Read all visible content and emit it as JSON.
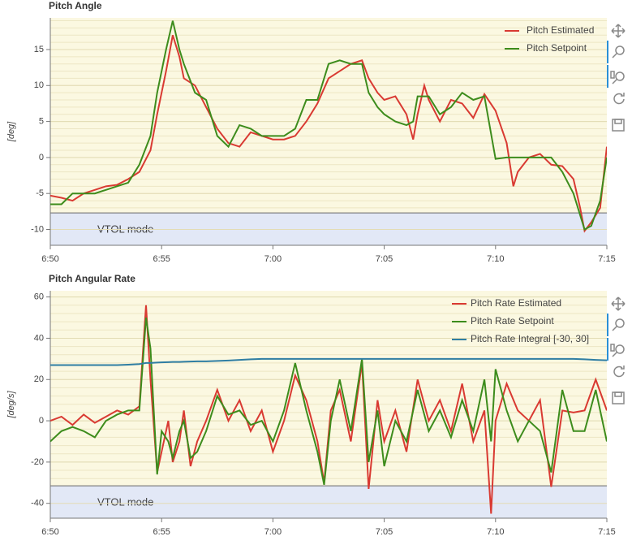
{
  "chart_data": [
    {
      "type": "line",
      "title": "Pitch Angle",
      "y_label": "[deg]",
      "xlim": [
        410,
        435
      ],
      "ylim": [
        -12.2,
        19.4
      ],
      "xticks": [
        {
          "value": 410,
          "label": "6:50"
        },
        {
          "value": 415,
          "label": "6:55"
        },
        {
          "value": 420,
          "label": "7:00"
        },
        {
          "value": 425,
          "label": "7:05"
        },
        {
          "value": 430,
          "label": "7:10"
        },
        {
          "value": 435,
          "label": "7:15"
        }
      ],
      "yticks": [
        -10,
        -5,
        0,
        5,
        10,
        15
      ],
      "grid": true,
      "legend": "top-right",
      "band": {
        "label": "VTOL mode",
        "top": -7.7
      },
      "x": [
        410,
        410.5,
        411,
        411.5,
        412,
        412.5,
        413,
        413.5,
        414,
        414.5,
        414.8,
        415.2,
        415.5,
        415.8,
        416,
        416.5,
        417,
        417.5,
        418,
        418.5,
        419,
        419.5,
        420,
        420.5,
        421,
        421.5,
        422,
        422.5,
        423,
        423.5,
        424,
        424.3,
        424.7,
        425,
        425.5,
        426,
        426.3,
        426.5,
        426.8,
        427,
        427.5,
        428,
        428.5,
        429,
        429.5,
        430,
        430.5,
        430.8,
        431,
        431.5,
        432,
        432.5,
        433,
        433.5,
        433.8,
        434,
        434.3,
        434.7,
        435
      ],
      "series": [
        {
          "name": "Pitch Estimated",
          "color": "#d93a32",
          "values": [
            -5.3,
            -5.6,
            -6,
            -5,
            -4.5,
            -4,
            -3.8,
            -3,
            -2,
            1,
            6,
            12,
            17,
            14,
            11,
            10,
            7,
            4,
            2,
            1.5,
            3.5,
            3,
            2.5,
            2.5,
            3,
            5,
            7.5,
            11,
            12,
            13,
            13.5,
            11,
            9,
            8,
            8.5,
            6,
            2.5,
            6,
            10,
            8,
            5,
            8,
            7.5,
            5.5,
            8.8,
            6.5,
            2,
            -4,
            -2,
            0,
            0.5,
            -1,
            -1.2,
            -3,
            -7,
            -10.2,
            -9,
            -7,
            1.5
          ]
        },
        {
          "name": "Pitch Setpoint",
          "color": "#3d8c1c",
          "values": [
            -6.5,
            -6.5,
            -5,
            -5,
            -5,
            -4.5,
            -4,
            -3.5,
            -1,
            3,
            9,
            15,
            19,
            15,
            13,
            9,
            8,
            3,
            1.5,
            4.5,
            4,
            3,
            3,
            3,
            4,
            8,
            8,
            13,
            13.5,
            13,
            13,
            9,
            7,
            6,
            5,
            4.5,
            5,
            8.5,
            8.5,
            8.5,
            6,
            7,
            9,
            8,
            8.5,
            -0.2,
            0,
            0,
            0,
            0,
            0,
            0,
            -2,
            -5,
            -8,
            -10,
            -9.5,
            -6,
            0
          ]
        }
      ]
    },
    {
      "type": "line",
      "title": "Pitch Angular Rate",
      "y_label": "[deg/s]",
      "xlim": [
        410,
        435
      ],
      "ylim": [
        -47.2,
        63
      ],
      "xticks": [
        {
          "value": 410,
          "label": "6:50"
        },
        {
          "value": 415,
          "label": "6:55"
        },
        {
          "value": 420,
          "label": "7:00"
        },
        {
          "value": 425,
          "label": "7:05"
        },
        {
          "value": 430,
          "label": "7:10"
        },
        {
          "value": 435,
          "label": "7:15"
        }
      ],
      "yticks": [
        -40,
        -20,
        0,
        20,
        40,
        60
      ],
      "grid": true,
      "legend": "top-right",
      "band": {
        "label": "VTOL mode",
        "top": -31.5
      },
      "x": [
        410,
        410.5,
        411,
        411.5,
        412,
        412.5,
        413,
        413.5,
        414,
        414.3,
        414.5,
        414.8,
        415,
        415.3,
        415.5,
        415.8,
        416,
        416.3,
        416.6,
        417,
        417.5,
        418,
        418.5,
        419,
        419.5,
        420,
        420.5,
        421,
        421.5,
        422,
        422.3,
        422.6,
        423,
        423.5,
        424,
        424.3,
        424.7,
        425,
        425.5,
        426,
        426.5,
        427,
        427.5,
        428,
        428.5,
        429,
        429.5,
        429.8,
        430,
        430.5,
        431,
        431.5,
        432,
        432.5,
        433,
        433.5,
        434,
        434.5,
        435
      ],
      "series": [
        {
          "name": "Pitch Rate Estimated",
          "color": "#d93a32",
          "values": [
            0,
            2,
            -2,
            3,
            -1,
            2,
            5,
            3,
            7,
            56,
            20,
            -25,
            -15,
            0,
            -20,
            -10,
            5,
            -22,
            -10,
            0,
            15,
            0,
            10,
            -5,
            5,
            -15,
            0,
            22,
            10,
            -10,
            -30,
            5,
            15,
            -10,
            28,
            -33,
            10,
            -10,
            5,
            -15,
            20,
            0,
            10,
            -5,
            18,
            -10,
            5,
            -45,
            0,
            18,
            5,
            0,
            10,
            -32,
            5,
            4,
            5,
            20,
            5
          ]
        },
        {
          "name": "Pitch Rate Setpoint",
          "color": "#3d8c1c",
          "values": [
            -10,
            -5,
            -3,
            -5,
            -8,
            0,
            3,
            5,
            5,
            50,
            35,
            -26,
            -5,
            -10,
            -18,
            -5,
            0,
            -18,
            -15,
            -5,
            12,
            3,
            5,
            -2,
            0,
            -10,
            5,
            28,
            5,
            -15,
            -31,
            0,
            20,
            -5,
            30,
            -20,
            5,
            -22,
            0,
            -10,
            15,
            -5,
            5,
            -8,
            10,
            -5,
            20,
            -10,
            25,
            5,
            -10,
            0,
            -5,
            -25,
            15,
            -5,
            -5,
            15,
            -10
          ]
        },
        {
          "name": "Pitch Rate Integral [-30, 30]",
          "color": "#2f7ea3",
          "values": [
            27,
            27,
            27,
            27,
            27,
            27,
            27,
            27.2,
            27.5,
            28,
            28,
            28.2,
            28.3,
            28.4,
            28.5,
            28.5,
            28.6,
            28.7,
            28.8,
            28.8,
            29,
            29.2,
            29.5,
            29.8,
            30,
            30,
            30,
            30,
            30,
            30,
            30,
            30,
            30,
            30,
            30,
            30,
            30,
            30,
            30,
            30,
            30,
            30,
            30,
            30,
            30,
            30,
            30,
            30,
            30,
            30,
            30,
            30,
            30,
            30,
            30,
            30,
            29.8,
            29.5,
            29.3
          ]
        }
      ]
    }
  ]
}
